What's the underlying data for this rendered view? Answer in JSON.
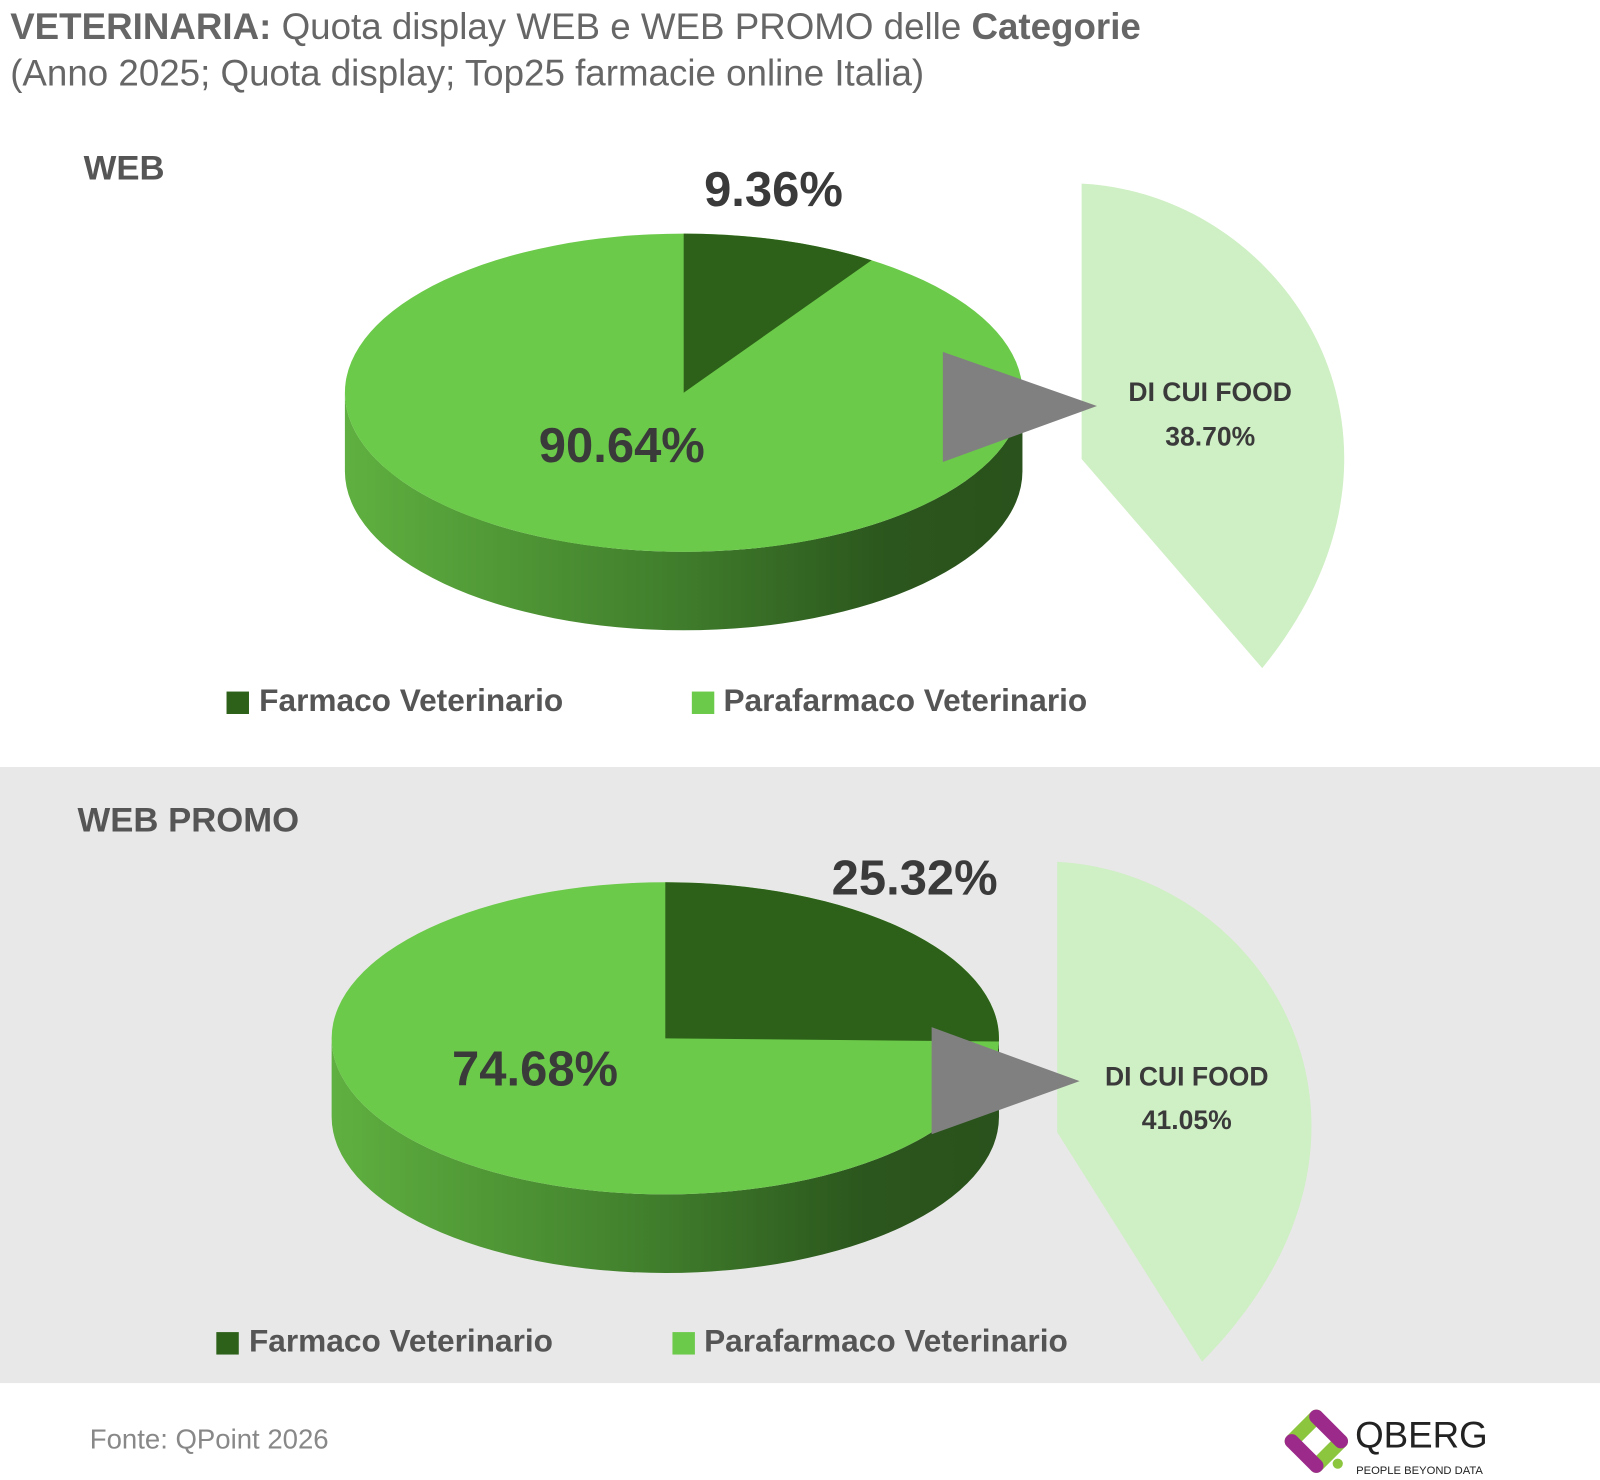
{
  "title": {
    "bold": "VETERINARIA:",
    "normal": " Quota display WEB e WEB PROMO delle ",
    "bold_end": "Categorie"
  },
  "subtitle": "(Anno 2025; Quota display; Top25 farmacie online Italia)",
  "colors": {
    "farmaco": "#2d6119",
    "parafarmaco": "#6cca4a",
    "food": "#cfefc4",
    "arrow": "#808080",
    "panel_bg": "#e8e8e8"
  },
  "chart_data": [
    {
      "type": "pie",
      "title": "WEB",
      "categories": [
        "Farmaco Veterinario",
        "Parafarmaco Veterinario"
      ],
      "values": [
        9.36,
        90.64
      ],
      "labels": [
        "9.36%",
        "90.64%"
      ],
      "sub_slice": {
        "label": "DI CUI FOOD",
        "value": 38.7,
        "value_label": "38.70%",
        "of": "Parafarmaco Veterinario"
      },
      "legend": "bottom"
    },
    {
      "type": "pie",
      "title": "WEB PROMO",
      "categories": [
        "Farmaco Veterinario",
        "Parafarmaco Veterinario"
      ],
      "values": [
        25.32,
        74.68
      ],
      "labels": [
        "25.32%",
        "74.68%"
      ],
      "sub_slice": {
        "label": "DI CUI FOOD",
        "value": 41.05,
        "value_label": "41.05%",
        "of": "Parafarmaco Veterinario"
      },
      "legend": "bottom"
    }
  ],
  "footer": {
    "source": "Fonte: QPoint 2026",
    "logo_text": "QBERG",
    "logo_tagline": "PEOPLE BEYOND DATA"
  }
}
